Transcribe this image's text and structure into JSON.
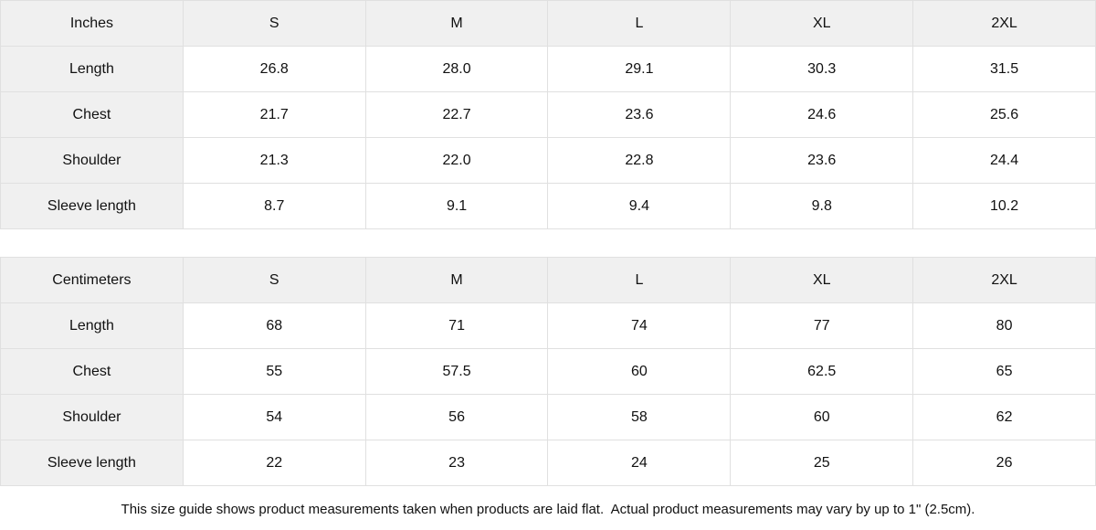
{
  "colors": {
    "header_bg": "#f0f0f0",
    "border": "#e0e0e0",
    "text": "#111111",
    "background": "#ffffff"
  },
  "size_guide": {
    "tables": [
      {
        "unit_label": "Inches",
        "columns": [
          "S",
          "M",
          "L",
          "XL",
          "2XL"
        ],
        "rows": [
          {
            "label": "Length",
            "values": [
              "26.8",
              "28.0",
              "29.1",
              "30.3",
              "31.5"
            ]
          },
          {
            "label": "Chest",
            "values": [
              "21.7",
              "22.7",
              "23.6",
              "24.6",
              "25.6"
            ]
          },
          {
            "label": "Shoulder",
            "values": [
              "21.3",
              "22.0",
              "22.8",
              "23.6",
              "24.4"
            ]
          },
          {
            "label": "Sleeve length",
            "values": [
              "8.7",
              "9.1",
              "9.4",
              "9.8",
              "10.2"
            ]
          }
        ]
      },
      {
        "unit_label": "Centimeters",
        "columns": [
          "S",
          "M",
          "L",
          "XL",
          "2XL"
        ],
        "rows": [
          {
            "label": "Length",
            "values": [
              "68",
              "71",
              "74",
              "77",
              "80"
            ]
          },
          {
            "label": "Chest",
            "values": [
              "55",
              "57.5",
              "60",
              "62.5",
              "65"
            ]
          },
          {
            "label": "Shoulder",
            "values": [
              "54",
              "56",
              "58",
              "60",
              "62"
            ]
          },
          {
            "label": "Sleeve length",
            "values": [
              "22",
              "23",
              "24",
              "25",
              "26"
            ]
          }
        ]
      }
    ],
    "footnote": "This size guide shows product measurements taken when products are laid flat.  Actual product measurements may vary by up to 1\" (2.5cm)."
  },
  "chart_data": [
    {
      "type": "table",
      "title": "Inches",
      "columns": [
        "",
        "S",
        "M",
        "L",
        "XL",
        "2XL"
      ],
      "rows": [
        [
          "Length",
          26.8,
          28.0,
          29.1,
          30.3,
          31.5
        ],
        [
          "Chest",
          21.7,
          22.7,
          23.6,
          24.6,
          25.6
        ],
        [
          "Shoulder",
          21.3,
          22.0,
          22.8,
          23.6,
          24.4
        ],
        [
          "Sleeve length",
          8.7,
          9.1,
          9.4,
          9.8,
          10.2
        ]
      ]
    },
    {
      "type": "table",
      "title": "Centimeters",
      "columns": [
        "",
        "S",
        "M",
        "L",
        "XL",
        "2XL"
      ],
      "rows": [
        [
          "Length",
          68,
          71,
          74,
          77,
          80
        ],
        [
          "Chest",
          55,
          57.5,
          60,
          62.5,
          65
        ],
        [
          "Shoulder",
          54,
          56,
          58,
          60,
          62
        ],
        [
          "Sleeve length",
          22,
          23,
          24,
          25,
          26
        ]
      ]
    }
  ]
}
